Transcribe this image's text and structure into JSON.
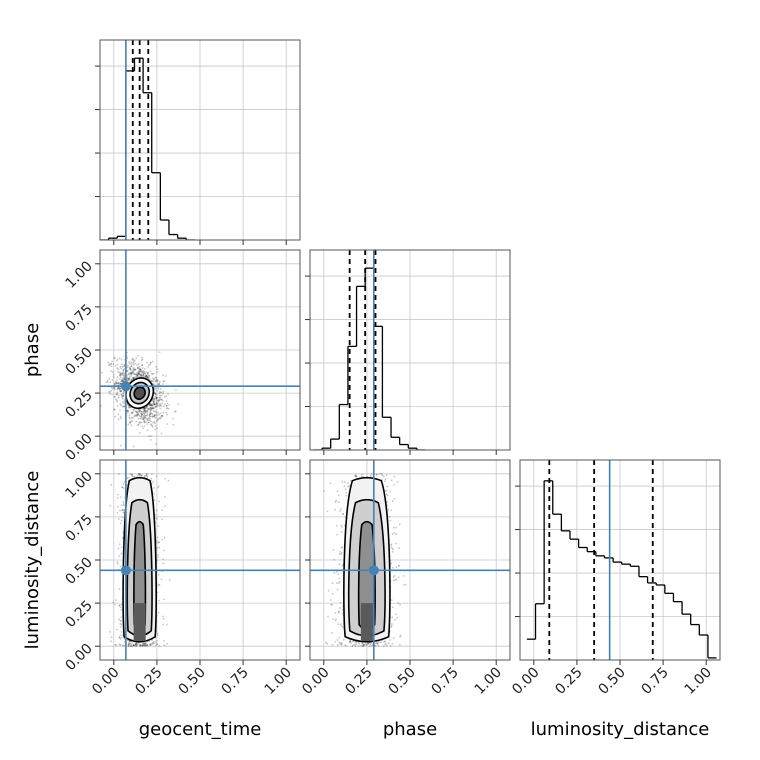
{
  "chart_data": {
    "type": "corner",
    "parameters": [
      "geocent_time",
      "phase",
      "luminosity_distance"
    ],
    "axis_range": [
      -0.08,
      1.08
    ],
    "tick_labels": [
      "0.00",
      "0.25",
      "0.50",
      "0.75",
      "1.00"
    ],
    "tick_values": [
      0.0,
      0.25,
      0.5,
      0.75,
      1.0
    ],
    "grid": true,
    "truths": {
      "geocent_time": 0.07,
      "phase": 0.29,
      "luminosity_distance": 0.44
    },
    "colors": {
      "truth": "#4682b4",
      "hist": "#000000",
      "density": "#000000"
    },
    "diagonal": [
      {
        "parameter": "geocent_time",
        "bin_edges": [
          -0.08,
          -0.03,
          0.02,
          0.07,
          0.12,
          0.17,
          0.22,
          0.27,
          0.32,
          0.37,
          0.42,
          0.47
        ],
        "counts": [
          0,
          0.01,
          0.02,
          0.93,
          1.0,
          0.81,
          0.37,
          0.11,
          0.03,
          0.01,
          0
        ],
        "quantiles": [
          0.11,
          0.15,
          0.2
        ],
        "ylim": [
          0,
          1.1
        ]
      },
      {
        "parameter": "phase",
        "bin_edges": [
          -0.06,
          -0.01,
          0.04,
          0.09,
          0.14,
          0.19,
          0.24,
          0.29,
          0.34,
          0.39,
          0.44,
          0.49,
          0.54,
          0.59
        ],
        "counts": [
          0,
          0.01,
          0.06,
          0.25,
          0.57,
          0.9,
          1.0,
          0.68,
          0.18,
          0.07,
          0.03,
          0.01,
          0
        ],
        "quantiles": [
          0.15,
          0.24,
          0.3
        ],
        "ylim": [
          0,
          1.1
        ]
      },
      {
        "parameter": "luminosity_distance",
        "bin_edges": [
          -0.04,
          0.01,
          0.06,
          0.11,
          0.16,
          0.21,
          0.26,
          0.31,
          0.36,
          0.41,
          0.46,
          0.51,
          0.56,
          0.61,
          0.66,
          0.71,
          0.76,
          0.81,
          0.86,
          0.91,
          0.96,
          1.01,
          1.06
        ],
        "counts": [
          0.1,
          0.27,
          0.86,
          0.7,
          0.62,
          0.58,
          0.54,
          0.52,
          0.5,
          0.49,
          0.47,
          0.46,
          0.45,
          0.4,
          0.37,
          0.36,
          0.32,
          0.28,
          0.22,
          0.17,
          0.12,
          0.01
        ],
        "quantiles": [
          0.09,
          0.35,
          0.69
        ],
        "ylim": [
          0,
          0.96
        ]
      }
    ],
    "pairs": [
      {
        "x": "geocent_time",
        "y": "phase",
        "center": [
          0.15,
          0.25
        ],
        "sigma": [
          0.07,
          0.09
        ],
        "rho": -0.35,
        "contour_sigmas": [
          0.8,
          1.4,
          2.0
        ]
      },
      {
        "x": "geocent_time",
        "y": "luminosity_distance",
        "x_center": 0.15,
        "x_sigma": 0.055,
        "y_range": [
          0.0,
          1.0
        ],
        "contour_half_widths": [
          0.035,
          0.075,
          0.1
        ]
      },
      {
        "x": "phase",
        "y": "luminosity_distance",
        "x_center": 0.25,
        "x_sigma": 0.075,
        "y_range": [
          0.0,
          1.0
        ],
        "contour_half_widths": [
          0.05,
          0.11,
          0.14
        ]
      }
    ]
  }
}
